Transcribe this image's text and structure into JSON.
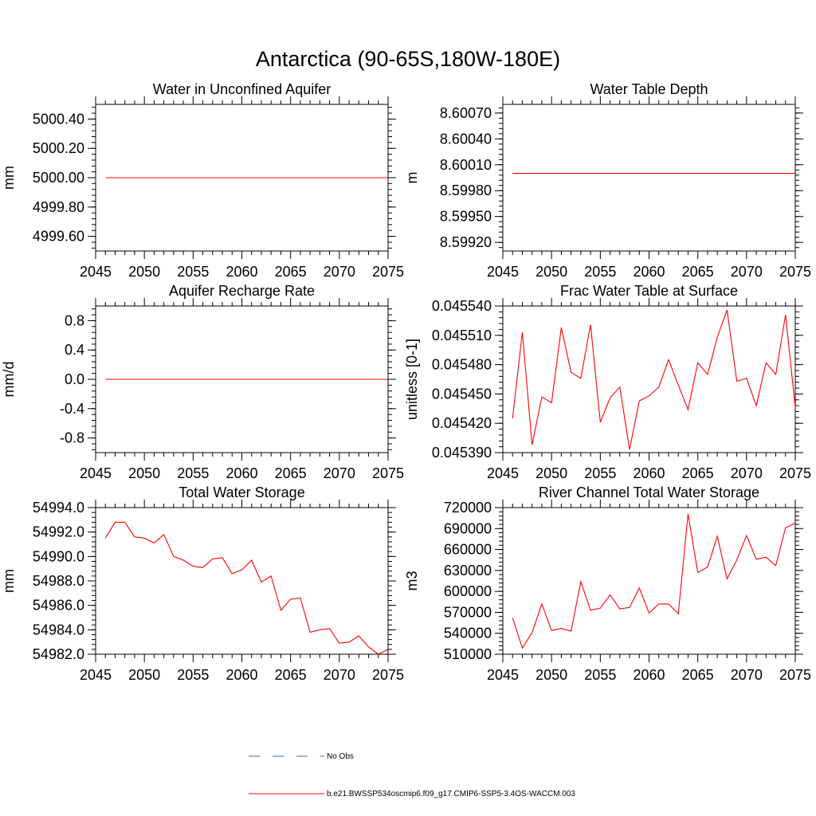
{
  "title": "Antarctica (90-65S,180W-180E)",
  "colors": {
    "model": "#ff0000",
    "obs": "#4a5fd0",
    "axis": "#000000",
    "background": "#ffffff"
  },
  "legend": {
    "obs_label": "No Obs",
    "model_label": "b.e21.BWSSP534oscmip6.f09_g17.CMIP6-SSP5-3.4OS-WACCM.003"
  },
  "chart_data": [
    {
      "type": "line",
      "title": "Water in Unconfined Aquifer",
      "xlabel": "",
      "ylabel": "mm",
      "xlim": [
        2045,
        2075
      ],
      "ylim": [
        4999.5,
        5000.5
      ],
      "xticks": [
        2045,
        2050,
        2055,
        2060,
        2065,
        2070,
        2075
      ],
      "xtick_labels": [
        "2045",
        "2050",
        "2055",
        "2060",
        "2065",
        "2070",
        "2075"
      ],
      "yticks": [
        4999.6,
        4999.8,
        5000.0,
        5000.2,
        5000.4
      ],
      "ytick_labels": [
        "4999.60",
        "4999.80",
        "5000.00",
        "5000.20",
        "5000.40"
      ],
      "series": [
        {
          "name": "b.e21.BWSSP534oscmip6.f09_g17.CMIP6-SSP5-3.4OS-WACCM.003",
          "x": [
            2046,
            2075
          ],
          "values": [
            5000.0,
            5000.0
          ]
        }
      ]
    },
    {
      "type": "line",
      "title": "Water Table Depth",
      "xlabel": "",
      "ylabel": "m",
      "xlim": [
        2045,
        2075
      ],
      "ylim": [
        8.5991,
        8.6008
      ],
      "xticks": [
        2045,
        2050,
        2055,
        2060,
        2065,
        2070,
        2075
      ],
      "xtick_labels": [
        "2045",
        "2050",
        "2055",
        "2060",
        "2065",
        "2070",
        "2075"
      ],
      "yticks": [
        8.5992,
        8.5995,
        8.5998,
        8.6001,
        8.6004,
        8.6007
      ],
      "ytick_labels": [
        "8.59920",
        "8.59950",
        "8.59980",
        "8.60010",
        "8.60040",
        "8.60070"
      ],
      "series": [
        {
          "name": "b.e21.BWSSP534oscmip6.f09_g17.CMIP6-SSP5-3.4OS-WACCM.003",
          "x": [
            2046,
            2075
          ],
          "values": [
            8.6,
            8.6
          ]
        }
      ]
    },
    {
      "type": "line",
      "title": "Aquifer Recharge Rate",
      "xlabel": "",
      "ylabel": "mm/d",
      "xlim": [
        2045,
        2075
      ],
      "ylim": [
        -1.0,
        1.0
      ],
      "xticks": [
        2045,
        2050,
        2055,
        2060,
        2065,
        2070,
        2075
      ],
      "xtick_labels": [
        "2045",
        "2050",
        "2055",
        "2060",
        "2065",
        "2070",
        "2075"
      ],
      "yticks": [
        -0.8,
        -0.4,
        0.0,
        0.4,
        0.8
      ],
      "ytick_labels": [
        "-0.8",
        "-0.4",
        "0.0",
        "0.4",
        "0.8"
      ],
      "series": [
        {
          "name": "b.e21.BWSSP534oscmip6.f09_g17.CMIP6-SSP5-3.4OS-WACCM.003",
          "x": [
            2046,
            2075
          ],
          "values": [
            0.0,
            0.0
          ]
        }
      ]
    },
    {
      "type": "line",
      "title": "Frac Water Table at Surface",
      "xlabel": "",
      "ylabel": "unitless [0-1]",
      "xlim": [
        2045,
        2075
      ],
      "ylim": [
        0.04539,
        0.04554
      ],
      "xticks": [
        2045,
        2050,
        2055,
        2060,
        2065,
        2070,
        2075
      ],
      "xtick_labels": [
        "2045",
        "2050",
        "2055",
        "2060",
        "2065",
        "2070",
        "2075"
      ],
      "yticks": [
        0.04539,
        0.04542,
        0.04545,
        0.04548,
        0.04551,
        0.04554
      ],
      "ytick_labels": [
        "0.045390",
        "0.045420",
        "0.045450",
        "0.045480",
        "0.045510",
        "0.045540"
      ],
      "series": [
        {
          "name": "b.e21.BWSSP534oscmip6.f09_g17.CMIP6-SSP5-3.4OS-WACCM.003",
          "x": [
            2046,
            2047,
            2048,
            2049,
            2050,
            2051,
            2052,
            2053,
            2054,
            2055,
            2056,
            2057,
            2058,
            2059,
            2060,
            2061,
            2062,
            2063,
            2064,
            2065,
            2066,
            2067,
            2068,
            2069,
            2070,
            2071,
            2072,
            2073,
            2074,
            2075
          ],
          "values": [
            0.045425,
            0.045513,
            0.045398,
            0.045447,
            0.045441,
            0.045518,
            0.045472,
            0.045466,
            0.045521,
            0.045421,
            0.045446,
            0.045457,
            0.045393,
            0.045443,
            0.045448,
            0.045457,
            0.045485,
            0.045459,
            0.045434,
            0.045482,
            0.04547,
            0.045508,
            0.045536,
            0.045463,
            0.045466,
            0.045438,
            0.045482,
            0.04547,
            0.045531,
            0.045436
          ]
        }
      ]
    },
    {
      "type": "line",
      "title": "Total Water Storage",
      "xlabel": "",
      "ylabel": "mm",
      "xlim": [
        2045,
        2075
      ],
      "ylim": [
        54982.0,
        54994.0
      ],
      "xticks": [
        2045,
        2050,
        2055,
        2060,
        2065,
        2070,
        2075
      ],
      "xtick_labels": [
        "2045",
        "2050",
        "2055",
        "2060",
        "2065",
        "2070",
        "2075"
      ],
      "yticks": [
        54982.0,
        54984.0,
        54986.0,
        54988.0,
        54990.0,
        54992.0,
        54994.0
      ],
      "ytick_labels": [
        "54982.0",
        "54984.0",
        "54986.0",
        "54988.0",
        "54990.0",
        "54992.0",
        "54994.0"
      ],
      "series": [
        {
          "name": "b.e21.BWSSP534oscmip6.f09_g17.CMIP6-SSP5-3.4OS-WACCM.003",
          "x": [
            2046,
            2047,
            2048,
            2049,
            2050,
            2051,
            2052,
            2053,
            2054,
            2055,
            2056,
            2057,
            2058,
            2059,
            2060,
            2061,
            2062,
            2063,
            2064,
            2065,
            2066,
            2067,
            2068,
            2069,
            2070,
            2071,
            2072,
            2073,
            2074,
            2075
          ],
          "values": [
            54991.5,
            54992.8,
            54992.8,
            54991.6,
            54991.5,
            54991.1,
            54991.8,
            54990.0,
            54989.7,
            54989.2,
            54989.1,
            54989.8,
            54989.9,
            54988.6,
            54988.9,
            54989.7,
            54987.9,
            54988.4,
            54985.6,
            54986.5,
            54986.6,
            54983.8,
            54984.0,
            54984.1,
            54982.9,
            54983.0,
            54983.5,
            54982.6,
            54982.0,
            54982.4
          ]
        }
      ]
    },
    {
      "type": "line",
      "title": "River Channel Total Water Storage",
      "xlabel": "",
      "ylabel": "m3",
      "xlim": [
        2045,
        2075
      ],
      "ylim": [
        510000,
        720000
      ],
      "xticks": [
        2045,
        2050,
        2055,
        2060,
        2065,
        2070,
        2075
      ],
      "xtick_labels": [
        "2045",
        "2050",
        "2055",
        "2060",
        "2065",
        "2070",
        "2075"
      ],
      "yticks": [
        510000,
        540000,
        570000,
        600000,
        630000,
        660000,
        690000,
        720000
      ],
      "ytick_labels": [
        "510000",
        "540000",
        "570000",
        "600000",
        "630000",
        "660000",
        "690000",
        "720000"
      ],
      "series": [
        {
          "name": "b.e21.BWSSP534oscmip6.f09_g17.CMIP6-SSP5-3.4OS-WACCM.003",
          "x": [
            2046,
            2047,
            2048,
            2049,
            2050,
            2051,
            2052,
            2053,
            2054,
            2055,
            2056,
            2057,
            2058,
            2059,
            2060,
            2061,
            2062,
            2063,
            2064,
            2065,
            2066,
            2067,
            2068,
            2069,
            2070,
            2071,
            2072,
            2073,
            2074,
            2075
          ],
          "values": [
            562000,
            519000,
            541000,
            582000,
            544000,
            547000,
            543000,
            614000,
            573000,
            576000,
            595000,
            575000,
            577000,
            605000,
            569000,
            582000,
            582000,
            568000,
            711000,
            627000,
            635000,
            679000,
            618000,
            645000,
            680000,
            646000,
            649000,
            637000,
            691000,
            698000
          ]
        }
      ]
    }
  ]
}
